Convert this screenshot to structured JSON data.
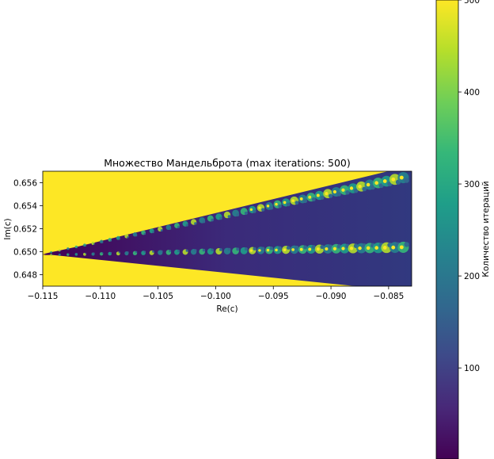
{
  "chart_data": {
    "type": "heatmap",
    "title": "Множество Мандельброта (max iterations: 500)",
    "xlabel": "Re(c)",
    "ylabel": "Im(c)",
    "xlim": [
      -0.115,
      -0.083
    ],
    "ylim": [
      0.647,
      0.657
    ],
    "x_ticks": [
      -0.115,
      -0.11,
      -0.105,
      -0.1,
      -0.095,
      -0.09,
      -0.085
    ],
    "x_tick_labels": [
      "−0.115",
      "−0.110",
      "−0.105",
      "−0.100",
      "−0.095",
      "−0.090",
      "−0.085"
    ],
    "y_ticks": [
      0.648,
      0.65,
      0.652,
      0.654,
      0.656
    ],
    "y_tick_labels": [
      "0.648",
      "0.650",
      "0.652",
      "0.654",
      "0.656"
    ],
    "max_iterations": 500,
    "colormap": "viridis",
    "colorbar": {
      "label": "Количество итераций",
      "range": [
        1,
        500
      ],
      "ticks": [
        100,
        200,
        300,
        400,
        500
      ],
      "tick_labels": [
        "100",
        "200",
        "300",
        "400",
        "500"
      ]
    }
  }
}
